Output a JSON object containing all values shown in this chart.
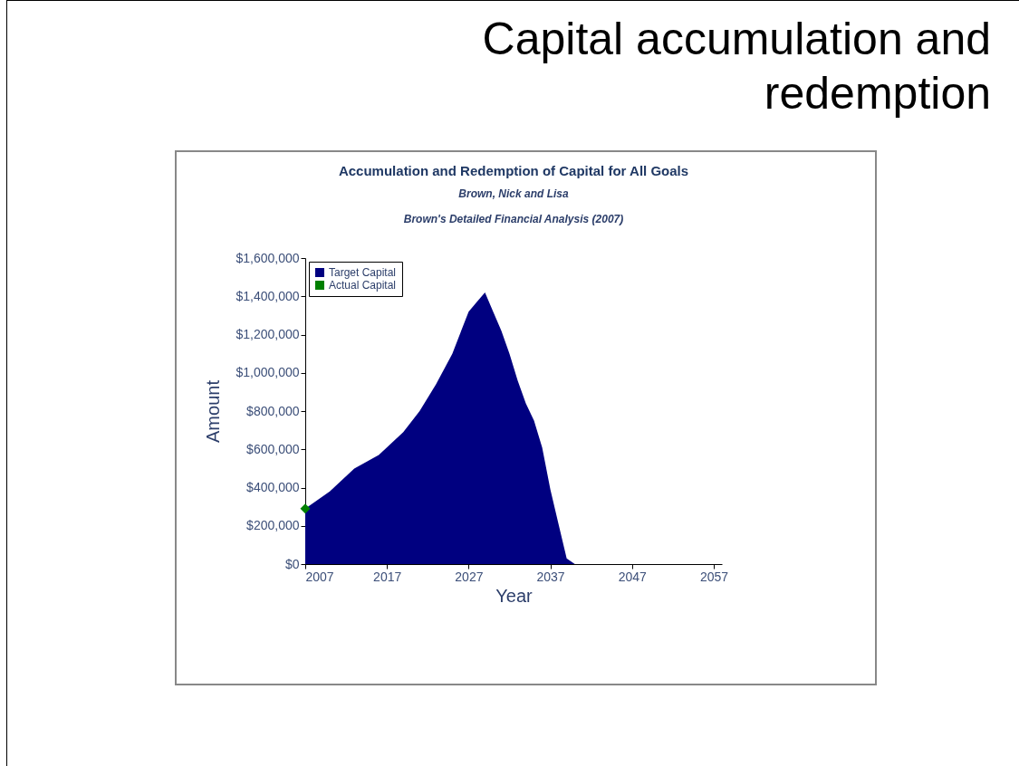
{
  "chart_data": {
    "type": "area",
    "title": "Capital accumulation and redemption",
    "subtitle": "Accumulation and Redemption of Capital for All Goals",
    "annotations": [
      "Brown, Nick and Lisa",
      "Brown's Detailed Financial Analysis (2007)"
    ],
    "xlabel": "Year",
    "ylabel": "Amount",
    "x": [
      2007,
      2010,
      2013,
      2016,
      2019,
      2021,
      2023,
      2025,
      2027,
      2028,
      2029,
      2030,
      2031,
      2032,
      2033,
      2034,
      2035,
      2036,
      2037,
      2038,
      2039,
      2040,
      2046
    ],
    "series": [
      {
        "name": "Target Capital",
        "color": "#000080",
        "values": [
          290000,
          380000,
          500000,
          570000,
          690000,
          800000,
          940000,
          1100000,
          1320000,
          1370000,
          1420000,
          1320000,
          1220000,
          1100000,
          960000,
          840000,
          750000,
          610000,
          390000,
          210000,
          30000,
          0,
          0
        ]
      },
      {
        "name": "Actual Capital",
        "type": "scatter",
        "color": "#008000",
        "marker": "diamond",
        "x": [
          2007
        ],
        "values": [
          290000
        ]
      }
    ],
    "xlim": [
      2007,
      2058
    ],
    "xticks": [
      2007,
      2017,
      2027,
      2037,
      2047,
      2057
    ],
    "ylim": [
      0,
      1600000
    ],
    "yticks": [
      {
        "value": 0,
        "label": "$0"
      },
      {
        "value": 200000,
        "label": "$200,000"
      },
      {
        "value": 400000,
        "label": "$400,000"
      },
      {
        "value": 600000,
        "label": "$600,000"
      },
      {
        "value": 800000,
        "label": "$800,000"
      },
      {
        "value": 1000000,
        "label": "$1,000,000"
      },
      {
        "value": 1200000,
        "label": "$1,200,000"
      },
      {
        "value": 1400000,
        "label": "$1,400,000"
      },
      {
        "value": 1600000,
        "label": "$1,600,000"
      }
    ],
    "legend": "top left"
  }
}
